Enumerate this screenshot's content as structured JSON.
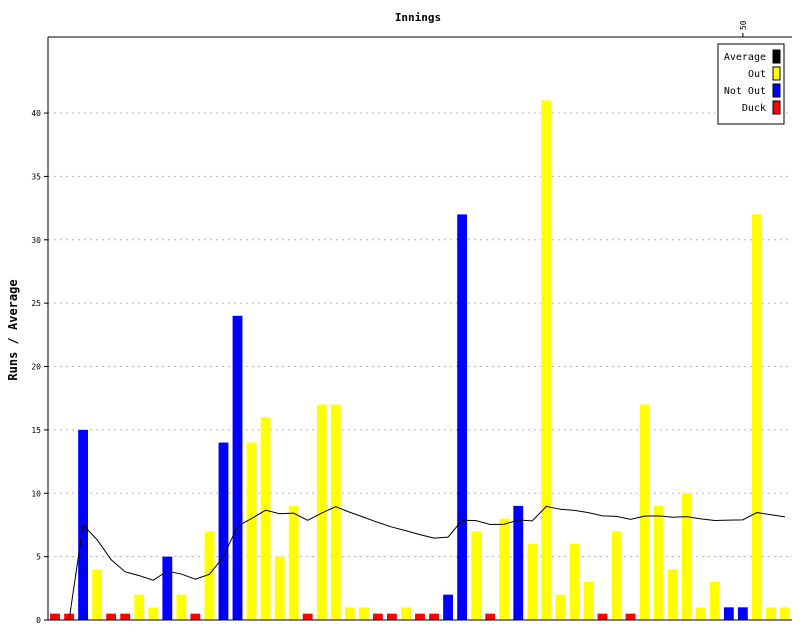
{
  "chart_data": {
    "type": "bar",
    "title": "Innings",
    "ylabel": "Runs / Average",
    "xlabel": "",
    "ylim": [
      0,
      46
    ],
    "yticks": [
      0,
      5,
      10,
      15,
      20,
      25,
      30,
      35,
      40
    ],
    "xtick_label": "50",
    "xtick_index": 50,
    "grid": true,
    "legend_position": "top-right",
    "legend": [
      {
        "name": "Average",
        "color": "#000000"
      },
      {
        "name": "Out",
        "color": "#ffff00"
      },
      {
        "name": "Not Out",
        "color": "#0000ff"
      },
      {
        "name": "Duck",
        "color": "#ff0000"
      }
    ],
    "colors": {
      "out": "#ffff00",
      "not_out": "#0000ff",
      "duck": "#ff0000",
      "average": "#000000"
    },
    "innings": [
      {
        "runs": 0,
        "status": "duck"
      },
      {
        "runs": 0,
        "status": "duck"
      },
      {
        "runs": 15,
        "status": "not_out"
      },
      {
        "runs": 4,
        "status": "out"
      },
      {
        "runs": 0,
        "status": "duck"
      },
      {
        "runs": 0,
        "status": "duck"
      },
      {
        "runs": 2,
        "status": "out"
      },
      {
        "runs": 1,
        "status": "out"
      },
      {
        "runs": 5,
        "status": "not_out"
      },
      {
        "runs": 2,
        "status": "out"
      },
      {
        "runs": 0,
        "status": "duck"
      },
      {
        "runs": 7,
        "status": "out"
      },
      {
        "runs": 14,
        "status": "not_out"
      },
      {
        "runs": 24,
        "status": "not_out"
      },
      {
        "runs": 14,
        "status": "out"
      },
      {
        "runs": 16,
        "status": "out"
      },
      {
        "runs": 5,
        "status": "out"
      },
      {
        "runs": 9,
        "status": "out"
      },
      {
        "runs": 0,
        "status": "duck"
      },
      {
        "runs": 17,
        "status": "out"
      },
      {
        "runs": 17,
        "status": "out"
      },
      {
        "runs": 1,
        "status": "out"
      },
      {
        "runs": 1,
        "status": "out"
      },
      {
        "runs": 0,
        "status": "duck"
      },
      {
        "runs": 0,
        "status": "duck"
      },
      {
        "runs": 1,
        "status": "out"
      },
      {
        "runs": 0,
        "status": "duck"
      },
      {
        "runs": 0,
        "status": "duck"
      },
      {
        "runs": 2,
        "status": "not_out"
      },
      {
        "runs": 32,
        "status": "not_out"
      },
      {
        "runs": 7,
        "status": "out"
      },
      {
        "runs": 0,
        "status": "duck"
      },
      {
        "runs": 8,
        "status": "out"
      },
      {
        "runs": 9,
        "status": "not_out"
      },
      {
        "runs": 6,
        "status": "out"
      },
      {
        "runs": 41,
        "status": "out"
      },
      {
        "runs": 2,
        "status": "out"
      },
      {
        "runs": 6,
        "status": "out"
      },
      {
        "runs": 3,
        "status": "out"
      },
      {
        "runs": 0,
        "status": "duck"
      },
      {
        "runs": 7,
        "status": "out"
      },
      {
        "runs": 0,
        "status": "duck"
      },
      {
        "runs": 17,
        "status": "out"
      },
      {
        "runs": 9,
        "status": "out"
      },
      {
        "runs": 4,
        "status": "out"
      },
      {
        "runs": 10,
        "status": "out"
      },
      {
        "runs": 1,
        "status": "out"
      },
      {
        "runs": 3,
        "status": "out"
      },
      {
        "runs": 1,
        "status": "not_out"
      },
      {
        "runs": 1,
        "status": "not_out"
      },
      {
        "runs": 32,
        "status": "out"
      },
      {
        "runs": 1,
        "status": "out"
      },
      {
        "runs": 1,
        "status": "out"
      }
    ]
  }
}
